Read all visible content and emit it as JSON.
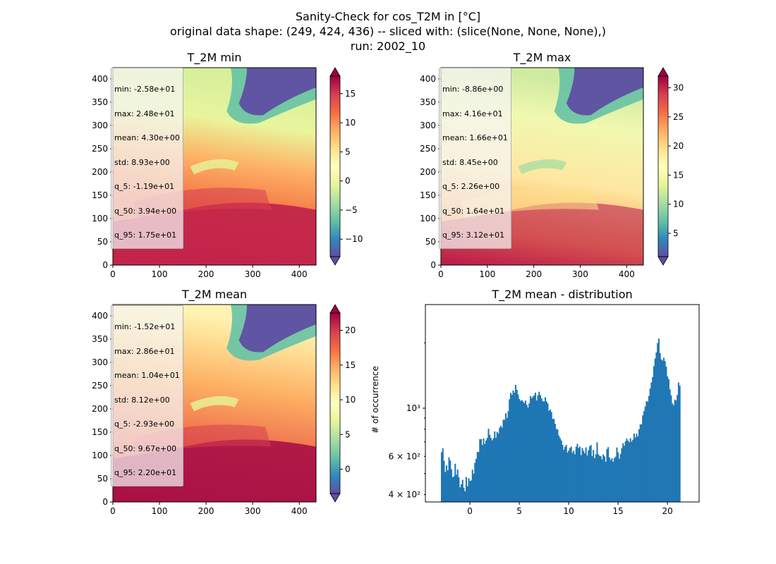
{
  "title": {
    "line1": "Sanity-Check for cos_T2M in [°C]",
    "line2": "original data shape: (249, 424, 436) -- sliced with: (slice(None, None, None),)",
    "line3": "run: 2002_10"
  },
  "colors": {
    "spectral_r": [
      "#5e4fa2",
      "#3288bd",
      "#66c2a5",
      "#abdda4",
      "#e6f598",
      "#ffffbf",
      "#fee08b",
      "#fdae61",
      "#f46d43",
      "#d53e4f",
      "#9e0142"
    ],
    "hist_bar": "#1f77b4"
  },
  "chart_data": [
    {
      "type": "heatmap",
      "title": "T_2M min",
      "x_ticks": [
        0,
        100,
        200,
        300,
        400
      ],
      "y_ticks": [
        0,
        50,
        100,
        150,
        200,
        250,
        300,
        350,
        400
      ],
      "xlim": [
        0,
        436
      ],
      "ylim": [
        0,
        424
      ],
      "colorbar": {
        "min": -13,
        "max": 18,
        "ticks": [
          -10,
          -5,
          0,
          5,
          10,
          15
        ],
        "extend": "both"
      },
      "stats": [
        "min: -2.58e+01",
        "max: 2.48e+01",
        "mean: 4.30e+00",
        "std: 8.93e+00",
        "q_5: -1.19e+01",
        "q_50: 3.94e+00",
        "q_95: 1.75e+01"
      ]
    },
    {
      "type": "heatmap",
      "title": "T_2M max",
      "x_ticks": [
        0,
        100,
        200,
        300,
        400
      ],
      "y_ticks": [
        0,
        50,
        100,
        150,
        200,
        250,
        300,
        350,
        400
      ],
      "xlim": [
        0,
        436
      ],
      "ylim": [
        0,
        424
      ],
      "colorbar": {
        "min": 1,
        "max": 32,
        "ticks": [
          5,
          10,
          15,
          20,
          25,
          30
        ],
        "extend": "both"
      },
      "stats": [
        "min: -8.86e+00",
        "max: 4.16e+01",
        "mean: 1.66e+01",
        "std: 8.45e+00",
        "q_5: 2.26e+00",
        "q_50: 1.64e+01",
        "q_95: 3.12e+01"
      ]
    },
    {
      "type": "heatmap",
      "title": "T_2M mean",
      "x_ticks": [
        0,
        100,
        200,
        300,
        400
      ],
      "y_ticks": [
        0,
        50,
        100,
        150,
        200,
        250,
        300,
        350,
        400
      ],
      "xlim": [
        0,
        436
      ],
      "ylim": [
        0,
        424
      ],
      "colorbar": {
        "min": -3.5,
        "max": 22.5,
        "ticks": [
          0,
          5,
          10,
          15,
          20
        ],
        "extend": "both"
      },
      "stats": [
        "min: -1.52e+01",
        "max: 2.86e+01",
        "mean: 1.04e+01",
        "std: 8.12e+00",
        "q_5: -2.93e+00",
        "q_50: 9.67e+00",
        "q_95: 2.20e+01"
      ]
    },
    {
      "type": "bar",
      "title": "T_2M mean - distribution",
      "ylabel": "# of occurrence",
      "yscale": "log",
      "xlim": [
        -4.5,
        23.2
      ],
      "ylim": [
        370,
        3000
      ],
      "x_ticks": [
        0,
        5,
        10,
        15,
        20
      ],
      "y_ticks": [
        {
          "value": 400,
          "label": "4 × 10²"
        },
        {
          "value": 600,
          "label": "6 × 10²"
        },
        {
          "value": 1000,
          "label": "10³"
        }
      ],
      "bin_start": -2.93,
      "bin_width": 0.1249,
      "values": [
        627,
        654,
        573,
        508,
        545,
        517,
        594,
        574,
        523,
        481,
        486,
        555,
        494,
        522,
        481,
        432,
        446,
        468,
        430,
        414,
        482,
        437,
        476,
        462,
        465,
        521,
        499,
        560,
        584,
        629,
        628,
        720,
        720,
        677,
        725,
        685,
        710,
        729,
        804,
        754,
        729,
        711,
        727,
        781,
        731,
        778,
        764,
        813,
        829,
        814,
        885,
        885,
        948,
        902,
        968,
        1100,
        1176,
        1152,
        1207,
        1179,
        1280,
        1214,
        1156,
        1103,
        1081,
        1089,
        1073,
        1055,
        1083,
        1036,
        1006,
        1052,
        1138,
        1111,
        1132,
        1146,
        1179,
        1085,
        1146,
        1190,
        1149,
        1111,
        1077,
        1073,
        1122,
        1074,
        1051,
        973,
        985,
        961,
        892,
        894,
        847,
        802,
        798,
        748,
        728,
        710,
        678,
        644,
        664,
        677,
        625,
        638,
        656,
        665,
        623,
        637,
        613,
        664,
        685,
        656,
        665,
        608,
        656,
        636,
        620,
        660,
        606,
        640,
        667,
        677,
        601,
        642,
        588,
        613,
        696,
        614,
        603,
        601,
        581,
        612,
        600,
        567,
        649,
        662,
        593,
        577,
        588,
        567,
        589,
        598,
        659,
        626,
        585,
        615,
        654,
        690,
        671,
        704,
        724,
        709,
        697,
        727,
        701,
        716,
        764,
        733,
        763,
        741,
        799,
        842,
        842,
        927,
        969,
        1017,
        1078,
        1071,
        1139,
        1232,
        1314,
        1392,
        1561,
        1693,
        1807,
        1995,
        2093,
        1795,
        1678,
        1656,
        1707,
        1649,
        1554,
        1400,
        1362,
        1222,
        1146,
        1052,
        1032,
        1095,
        1084,
        1150,
        1312,
        1270
      ]
    }
  ]
}
